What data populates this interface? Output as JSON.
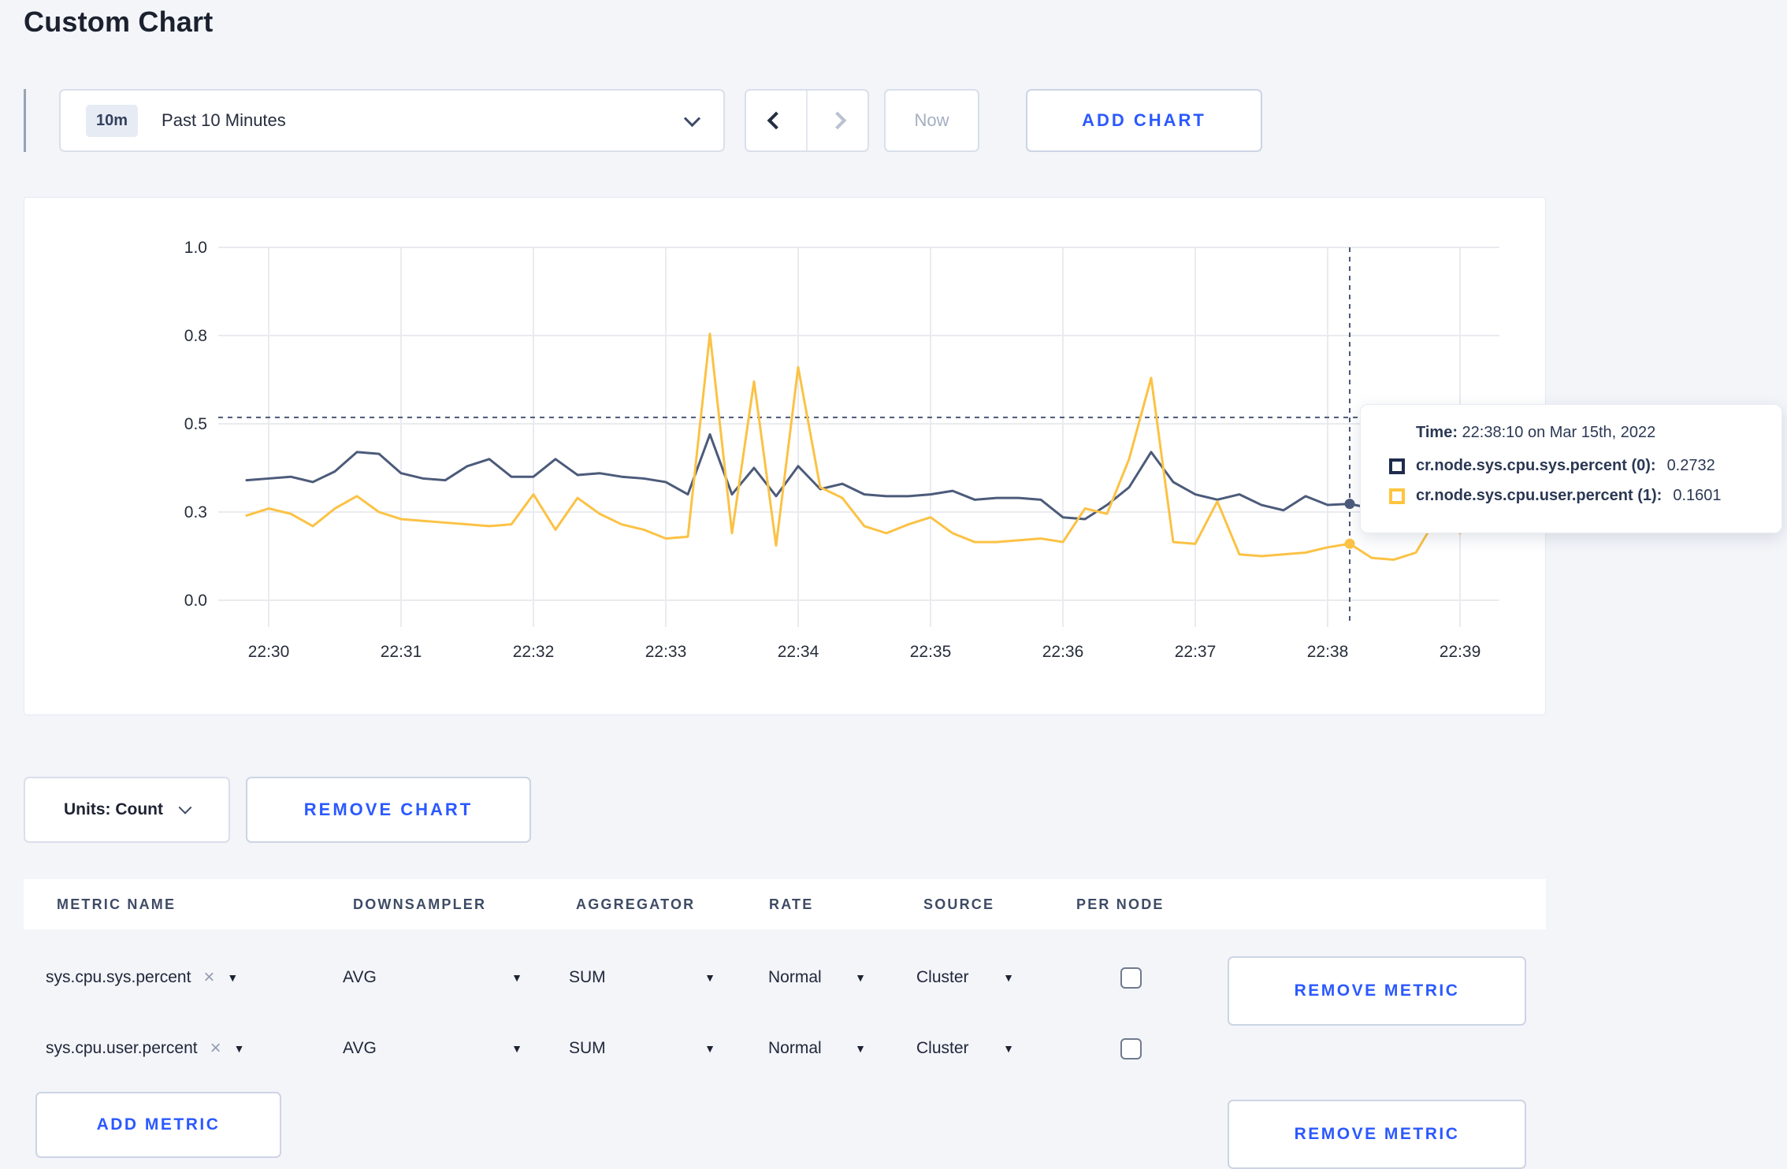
{
  "page": {
    "title": "Custom Chart"
  },
  "icons": {
    "close": "×",
    "caret_down": "▼"
  },
  "toolbar": {
    "time_range": {
      "badge": "10m",
      "label": "Past 10 Minutes"
    },
    "now_label": "Now",
    "add_chart_label": "ADD CHART"
  },
  "chart_controls": {
    "units_label": "Units: Count",
    "remove_chart_label": "REMOVE CHART"
  },
  "tooltip": {
    "time_label": "Time:",
    "time_value": "22:38:10 on Mar 15th, 2022",
    "series": [
      {
        "label": "cr.node.sys.cpu.sys.percent (0):",
        "value": "0.2732",
        "color": "#1f2b4d"
      },
      {
        "label": "cr.node.sys.cpu.user.percent (1):",
        "value": "0.1601",
        "color": "#fdc53f"
      }
    ]
  },
  "chart_data": {
    "type": "line",
    "title": "",
    "xlabel": "",
    "ylabel": "",
    "x_start": "22:29:50",
    "x_interval_seconds": 10,
    "x_tick_labels": [
      "22:30",
      "22:31",
      "22:32",
      "22:33",
      "22:34",
      "22:35",
      "22:36",
      "22:37",
      "22:38",
      "22:39"
    ],
    "y_ticks": [
      {
        "value": 0,
        "label": "0.0"
      },
      {
        "value": 0.25,
        "label": "0.3"
      },
      {
        "value": 0.5,
        "label": "0.5"
      },
      {
        "value": 0.75,
        "label": "0.8"
      },
      {
        "value": 1.0,
        "label": "1.0"
      }
    ],
    "ylim": [
      0,
      1
    ],
    "grid": true,
    "legend_position": "tooltip",
    "series": [
      {
        "name": "cr.node.sys.cpu.sys.percent",
        "color": "#4c5b7a",
        "values": [
          0.34,
          0.345,
          0.35,
          0.335,
          0.365,
          0.42,
          0.415,
          0.36,
          0.345,
          0.34,
          0.38,
          0.4,
          0.35,
          0.35,
          0.4,
          0.355,
          0.36,
          0.35,
          0.345,
          0.335,
          0.3,
          0.47,
          0.3,
          0.375,
          0.295,
          0.38,
          0.315,
          0.33,
          0.3,
          0.295,
          0.295,
          0.3,
          0.31,
          0.285,
          0.29,
          0.29,
          0.285,
          0.235,
          0.23,
          0.27,
          0.32,
          0.42,
          0.335,
          0.3,
          0.285,
          0.3,
          0.27,
          0.255,
          0.295,
          0.27,
          0.2732,
          0.26,
          0.285,
          0.3,
          0.295,
          0.3,
          0.305
        ]
      },
      {
        "name": "cr.node.sys.cpu.user.percent",
        "color": "#fbc245",
        "values": [
          0.24,
          0.26,
          0.245,
          0.21,
          0.26,
          0.295,
          0.25,
          0.23,
          0.225,
          0.22,
          0.215,
          0.21,
          0.215,
          0.3,
          0.2,
          0.29,
          0.245,
          0.215,
          0.2,
          0.175,
          0.18,
          0.755,
          0.19,
          0.62,
          0.155,
          0.66,
          0.32,
          0.29,
          0.21,
          0.19,
          0.215,
          0.235,
          0.19,
          0.165,
          0.165,
          0.17,
          0.175,
          0.165,
          0.26,
          0.245,
          0.4,
          0.63,
          0.165,
          0.16,
          0.28,
          0.13,
          0.125,
          0.13,
          0.135,
          0.15,
          0.1601,
          0.12,
          0.115,
          0.135,
          0.24,
          0.19,
          0.26
        ]
      }
    ],
    "crosshair": {
      "time": "22:38:10",
      "x_index": 50,
      "y_value": 0.518
    },
    "highlight_points": [
      {
        "series": 0,
        "index": 50,
        "value": 0.2732
      },
      {
        "series": 1,
        "index": 50,
        "value": 0.1601
      }
    ]
  },
  "metrics_table": {
    "headers": [
      "METRIC NAME",
      "DOWNSAMPLER",
      "AGGREGATOR",
      "RATE",
      "SOURCE",
      "PER NODE"
    ],
    "rows": [
      {
        "metric": "sys.cpu.sys.percent",
        "downsampler": "AVG",
        "aggregator": "SUM",
        "rate": "Normal",
        "source": "Cluster",
        "per_node": false,
        "remove_label": "REMOVE METRIC"
      },
      {
        "metric": "sys.cpu.user.percent",
        "downsampler": "AVG",
        "aggregator": "SUM",
        "rate": "Normal",
        "source": "Cluster",
        "per_node": false,
        "remove_label": "REMOVE METRIC"
      }
    ],
    "add_metric_label": "ADD METRIC"
  }
}
